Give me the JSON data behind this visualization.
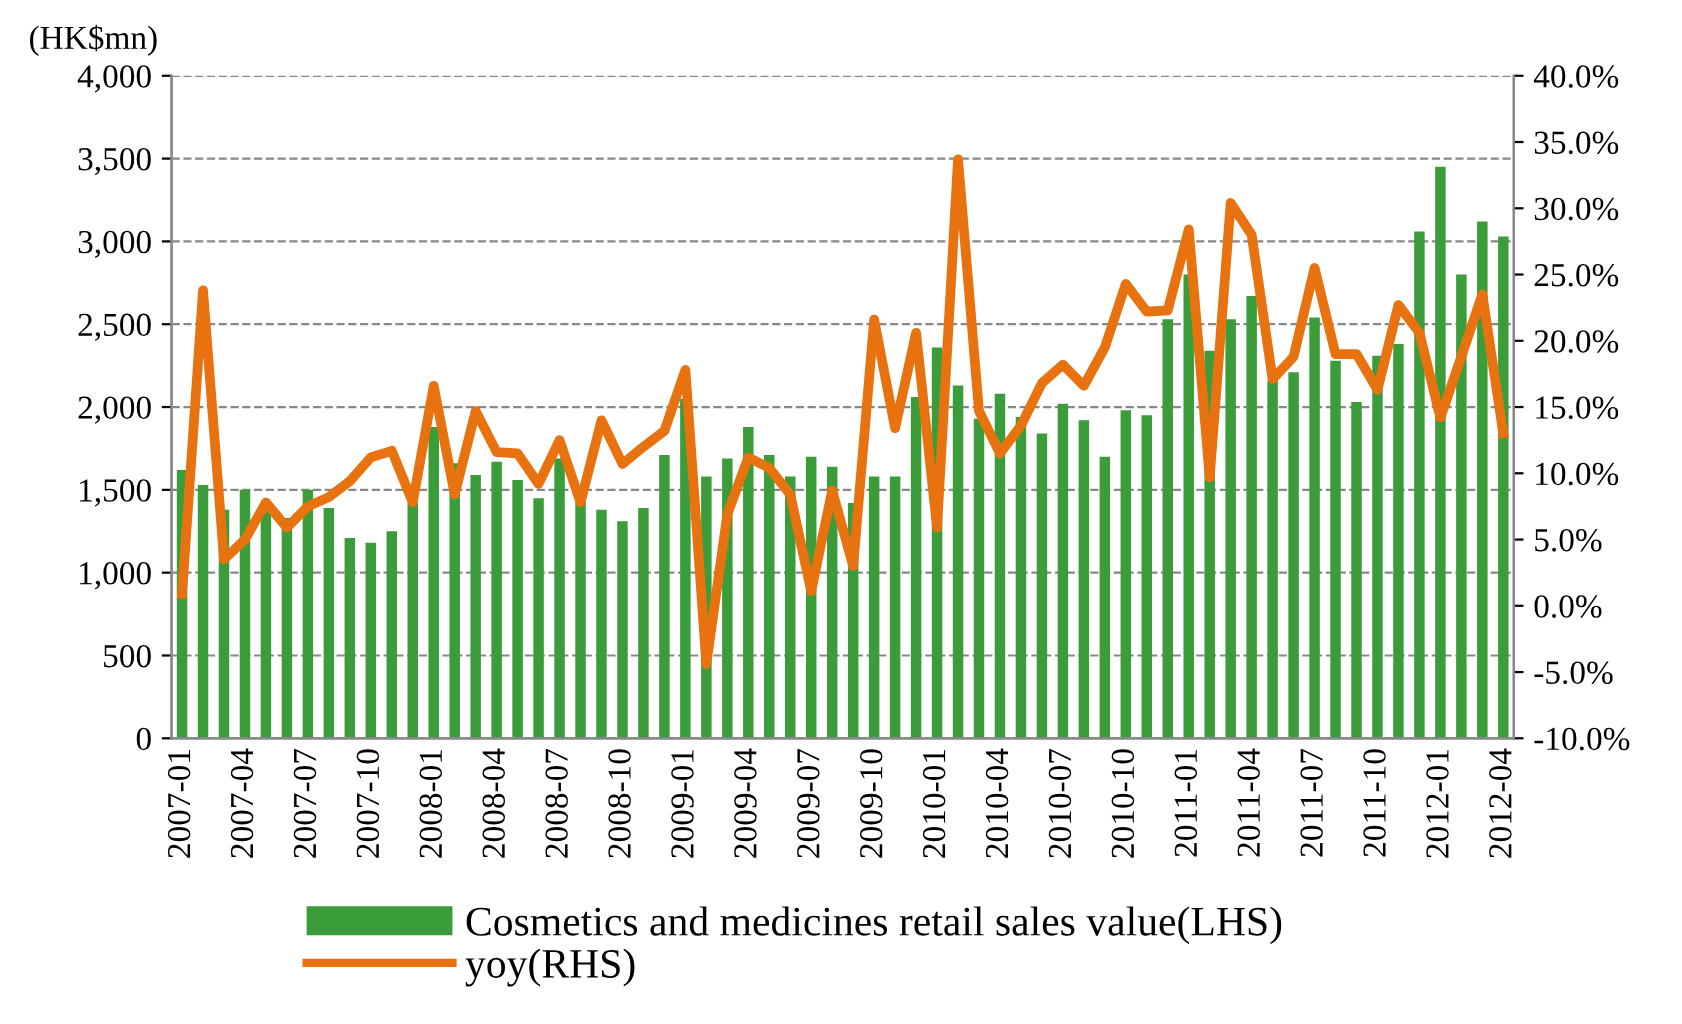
{
  "chart_data": {
    "type": "bar",
    "ylabel": "(HK$mn)",
    "categories": [
      "2007-01",
      null,
      null,
      "2007-04",
      null,
      null,
      "2007-07",
      null,
      null,
      "2007-10",
      null,
      null,
      "2008-01",
      null,
      null,
      "2008-04",
      null,
      null,
      "2008-07",
      null,
      null,
      "2008-10",
      null,
      null,
      "2009-01",
      null,
      null,
      "2009-04",
      null,
      null,
      "2009-07",
      null,
      null,
      "2009-10",
      null,
      null,
      "2010-01",
      null,
      null,
      "2010-04",
      null,
      null,
      "2010-07",
      null,
      null,
      "2010-10",
      null,
      null,
      "2011-01",
      null,
      null,
      "2011-04",
      null,
      null,
      "2011-07",
      null,
      null,
      "2011-10",
      null,
      null,
      "2012-01",
      null,
      null,
      "2012-04"
    ],
    "series": [
      {
        "name": "Cosmetics and medicines retail sales value(LHS)",
        "color": "#3a9d3a",
        "values": [
          1620,
          1530,
          1380,
          1500,
          1370,
          1330,
          1500,
          1390,
          1210,
          1180,
          1250,
          1420,
          1880,
          1660,
          1590,
          1670,
          1560,
          1450,
          1690,
          1430,
          1380,
          1310,
          1390,
          1710,
          2050,
          1580,
          1690,
          1880,
          1710,
          1580,
          1700,
          1640,
          1420,
          1580,
          1580,
          2060,
          2360,
          2130,
          1930,
          2080,
          1940,
          1840,
          2020,
          1920,
          1700,
          1980,
          1950,
          2530,
          2800,
          2340,
          2530,
          2670,
          2160,
          2210,
          2540,
          2280,
          2030,
          2310,
          2380,
          3060,
          3450,
          2800,
          3120,
          3030
        ]
      },
      {
        "name": "yoy(RHS)",
        "type": "line",
        "axis": "y2",
        "color": "#e8720f",
        "values": [
          0.9,
          23.8,
          3.5,
          5.0,
          7.8,
          5.9,
          7.5,
          8.2,
          9.4,
          11.2,
          11.7,
          7.8,
          16.6,
          8.4,
          14.7,
          11.6,
          11.5,
          9.2,
          12.5,
          7.8,
          14.0,
          10.7,
          12.0,
          13.2,
          17.8,
          -4.4,
          6.9,
          11.2,
          10.4,
          8.4,
          1.1,
          8.7,
          3.0,
          21.6,
          13.4,
          20.6,
          5.9,
          33.7,
          14.7,
          11.5,
          13.6,
          16.8,
          18.2,
          16.6,
          19.5,
          24.3,
          22.2,
          22.3,
          28.4,
          9.7,
          30.4,
          28.0,
          17.1,
          18.8,
          25.5,
          19.0,
          19.0,
          16.3,
          22.7,
          20.6,
          14.2,
          18.8,
          23.5,
          13.0
        ]
      }
    ],
    "ylim": [
      0,
      4000
    ],
    "yticks": [
      0,
      {
        "value": 500,
        "label": "500"
      },
      {
        "value": 1000,
        "label": "1,000"
      },
      {
        "value": 1500,
        "label": "1,500"
      },
      {
        "value": 2000,
        "label": "2,000"
      },
      {
        "value": 2500,
        "label": "2,500"
      },
      {
        "value": 3000,
        "label": "3,000"
      },
      {
        "value": 3500,
        "label": "3,500"
      },
      {
        "value": 4000,
        "label": "4,000"
      }
    ],
    "y2lim": [
      -10,
      40
    ],
    "y2ticks": [
      {
        "value": -10,
        "label": "-10.0%"
      },
      {
        "value": -5,
        "label": "-5.0%"
      },
      {
        "value": 0,
        "label": "0.0%"
      },
      {
        "value": 5,
        "label": "5.0%"
      },
      {
        "value": 10,
        "label": "10.0%"
      },
      {
        "value": 15,
        "label": "15.0%"
      },
      {
        "value": 20,
        "label": "20.0%"
      },
      {
        "value": 25,
        "label": "25.0%"
      },
      {
        "value": 30,
        "label": "30.0%"
      },
      {
        "value": 35,
        "label": "35.0%"
      },
      {
        "value": 40,
        "label": "40.0%"
      }
    ],
    "grid": "y",
    "legend": "bottom",
    "line_style": "solid",
    "marker": "none"
  }
}
